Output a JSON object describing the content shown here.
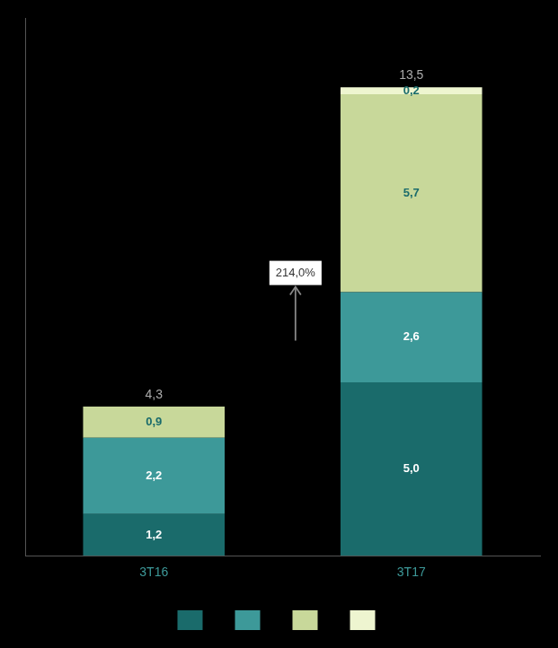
{
  "chart_data": {
    "type": "bar",
    "stacked": true,
    "categories": [
      "3T16",
      "3T17"
    ],
    "series": [
      {
        "color": "#1a6b6b",
        "values": [
          1.2,
          5.0
        ],
        "value_labels": [
          "1,2",
          "5,0"
        ]
      },
      {
        "color": "#3d9999",
        "values": [
          2.2,
          2.6
        ],
        "value_labels": [
          "2,2",
          "2,6"
        ]
      },
      {
        "color": "#c8d89a",
        "values": [
          0.9,
          5.7
        ],
        "value_labels": [
          "0,9",
          "5,7"
        ]
      },
      {
        "color": "#eef5d0",
        "values": [
          null,
          0.2
        ],
        "value_labels": [
          null,
          "0,2"
        ]
      }
    ],
    "totals": [
      4.3,
      13.5
    ],
    "total_labels": [
      "4,3",
      "13,5"
    ],
    "annotations": [
      {
        "text": "214,0%"
      }
    ],
    "data_labels": true,
    "ylim": [
      0,
      15.5
    ],
    "tick_labels": "x",
    "grid": false,
    "legend": "bottom"
  }
}
